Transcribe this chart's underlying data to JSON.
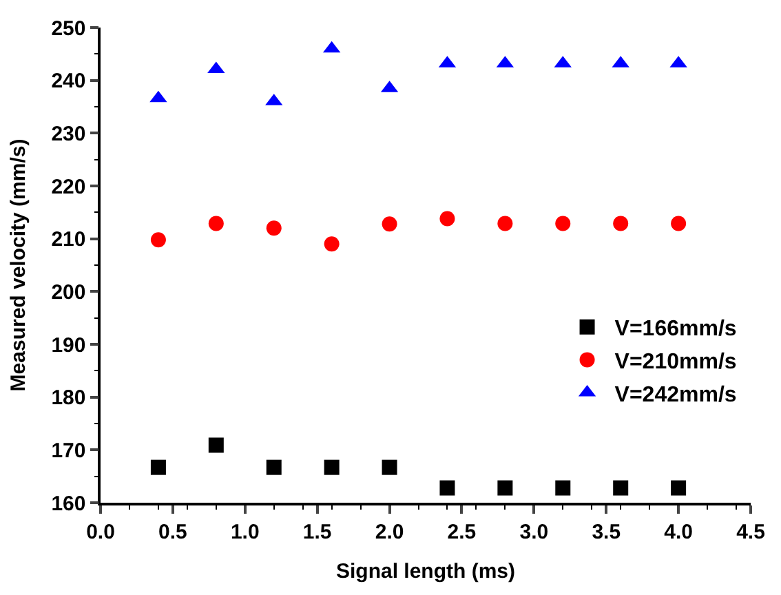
{
  "chart_data": {
    "type": "scatter",
    "xlabel": "Signal length (ms)",
    "ylabel": "Measured velocity (mm/s)",
    "x": [
      0.4,
      0.8,
      1.2,
      1.6,
      2.0,
      2.4,
      2.8,
      3.2,
      3.6,
      4.0
    ],
    "series": [
      {
        "name": "V=166mm/s",
        "color": "#000000",
        "marker": "square",
        "values": [
          166.7,
          170.9,
          166.7,
          166.7,
          166.7,
          162.8,
          162.8,
          162.8,
          162.8,
          162.8
        ]
      },
      {
        "name": "V=210mm/s",
        "color": "#ff0000",
        "marker": "circle",
        "values": [
          209.8,
          212.9,
          212.0,
          209.0,
          212.8,
          213.8,
          212.9,
          212.9,
          212.9,
          212.9
        ]
      },
      {
        "name": "V=242mm/s",
        "color": "#0000ff",
        "marker": "triangle",
        "values": [
          236.6,
          242.1,
          236.0,
          246.0,
          238.5,
          243.2,
          243.2,
          243.2,
          243.2,
          243.2
        ]
      }
    ],
    "xlim": [
      0.0,
      4.5
    ],
    "xticks": [
      {
        "value": 0,
        "label": "0.0"
      },
      0.5,
      {
        "value": 1,
        "label": "1.0"
      },
      1.5,
      {
        "value": 2,
        "label": "2.0"
      },
      2.5,
      {
        "value": 3,
        "label": "3.0"
      },
      3.5,
      {
        "value": 4,
        "label": "4.0"
      },
      4.5
    ],
    "ylim": [
      160,
      250
    ],
    "yticks": [
      160,
      170,
      180,
      190,
      200,
      210,
      220,
      230,
      240,
      250
    ],
    "legend": "right"
  }
}
